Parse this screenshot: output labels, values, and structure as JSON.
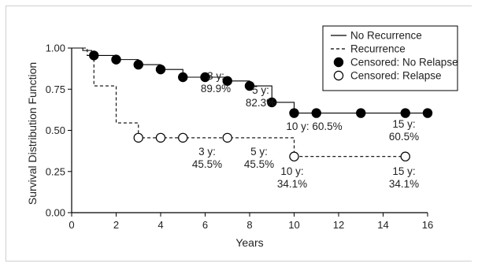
{
  "chart_data": {
    "type": "line",
    "xlabel": "Years",
    "ylabel": "Survival Distribution Function",
    "xlim": [
      0,
      16
    ],
    "ylim": [
      0,
      1
    ],
    "x_ticks": [
      0,
      2,
      4,
      6,
      8,
      10,
      12,
      14,
      16
    ],
    "y_ticks": [
      0,
      0.25,
      0.5,
      0.75,
      1.0
    ],
    "x_tick_labels": [
      "0",
      "2",
      "4",
      "6",
      "8",
      "10",
      "12",
      "14",
      "16"
    ],
    "y_tick_labels": [
      "0.00",
      "0.25",
      "0.50",
      "0.75",
      "1.00"
    ],
    "grid": false,
    "legend_position": "top-right",
    "legend": [
      {
        "label": "No Recurrence",
        "symbol": "solid-line"
      },
      {
        "label": "Recurrence",
        "symbol": "dashed-line"
      },
      {
        "label": "Censored: No Relapse",
        "symbol": "filled-circle"
      },
      {
        "label": "Censored: Relapse",
        "symbol": "open-circle"
      }
    ],
    "series": [
      {
        "name": "No Recurrence",
        "style": "solid",
        "steps": [
          [
            0,
            1.0
          ],
          [
            0.5,
            0.985
          ],
          [
            0.9,
            0.955
          ],
          [
            2,
            0.93
          ],
          [
            3,
            0.899
          ],
          [
            4,
            0.87
          ],
          [
            5,
            0.823
          ],
          [
            7,
            0.8
          ],
          [
            8,
            0.77
          ],
          [
            9,
            0.67
          ],
          [
            10,
            0.605
          ],
          [
            16,
            0.605
          ]
        ],
        "censored": {
          "marker": "filled-circle",
          "x": [
            1,
            2,
            3,
            4,
            5,
            6,
            7,
            8,
            9,
            10,
            11,
            13,
            15,
            16
          ],
          "y": [
            0.955,
            0.93,
            0.899,
            0.87,
            0.823,
            0.823,
            0.8,
            0.77,
            0.67,
            0.605,
            0.605,
            0.605,
            0.605,
            0.605
          ]
        }
      },
      {
        "name": "Recurrence",
        "style": "dashed",
        "steps": [
          [
            0,
            1.0
          ],
          [
            0.7,
            0.955
          ],
          [
            1,
            0.77
          ],
          [
            2,
            0.545
          ],
          [
            3,
            0.455
          ],
          [
            10,
            0.341
          ],
          [
            15,
            0.341
          ]
        ],
        "censored": {
          "marker": "open-circle",
          "x": [
            3,
            4,
            5,
            7,
            10,
            15
          ],
          "y": [
            0.455,
            0.455,
            0.455,
            0.455,
            0.341,
            0.341
          ]
        }
      }
    ],
    "annotations": [
      {
        "lines": [
          "3 y:",
          "89.9%"
        ]
      },
      {
        "lines": [
          "5 y:",
          "82.3%"
        ]
      },
      {
        "lines": [
          "10 y: 60.5%"
        ]
      },
      {
        "lines": [
          "15 y:",
          "60.5%"
        ]
      },
      {
        "lines": [
          "3 y:",
          "45.5%"
        ]
      },
      {
        "lines": [
          "5 y:",
          "45.5%"
        ]
      },
      {
        "lines": [
          "10 y:",
          "34.1%"
        ]
      },
      {
        "lines": [
          "15 y:",
          "34.1%"
        ]
      }
    ]
  }
}
